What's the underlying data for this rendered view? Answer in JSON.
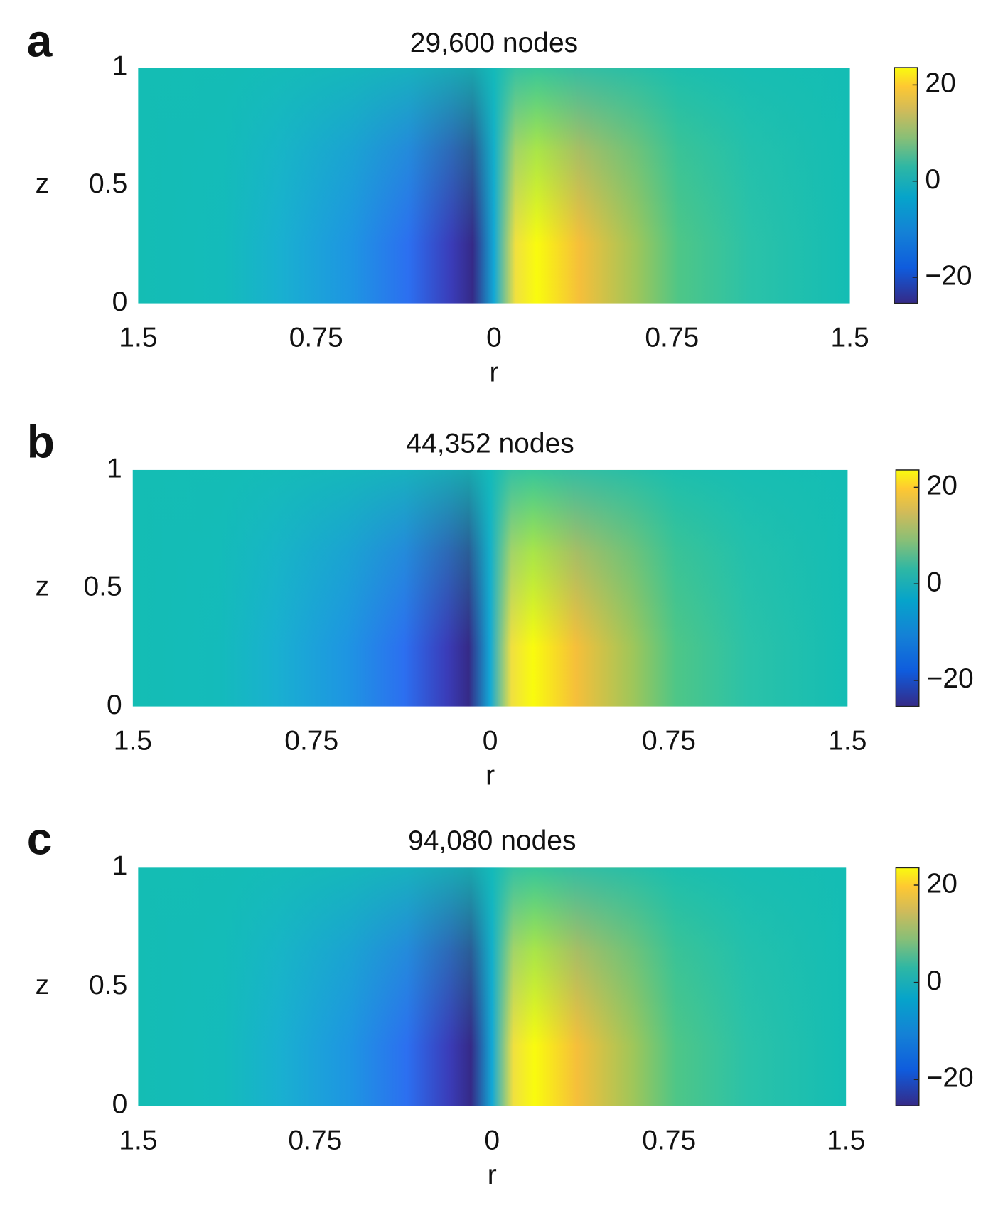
{
  "chart_data": [
    {
      "type": "contour",
      "panel": "a",
      "title": "29,600 nodes",
      "xlabel": "r",
      "ylabel": "z",
      "xlim": [
        -1.5,
        1.5
      ],
      "xticks": [
        {
          "value": -1.5,
          "label": "1.5"
        },
        {
          "value": -0.75,
          "label": "0.75"
        },
        0,
        0.75,
        1.5
      ],
      "ylim": [
        0,
        1
      ],
      "yticks": [
        0,
        0.5,
        1
      ],
      "clim": [
        -25.4,
        23.6
      ],
      "cticks": [
        {
          "value": -20,
          "label": "−20"
        },
        0,
        20
      ],
      "colormap": "parula"
    },
    {
      "type": "contour",
      "panel": "b",
      "title": "44,352 nodes",
      "xlabel": "r",
      "ylabel": "z",
      "xlim": [
        -1.5,
        1.5
      ],
      "xticks": [
        {
          "value": -1.5,
          "label": "1.5"
        },
        {
          "value": -0.75,
          "label": "0.75"
        },
        0,
        0.75,
        1.5
      ],
      "ylim": [
        0,
        1
      ],
      "yticks": [
        0,
        0.5,
        1
      ],
      "clim": [
        -25.4,
        23.6
      ],
      "cticks": [
        {
          "value": -20,
          "label": "−20"
        },
        0,
        20
      ],
      "colormap": "parula"
    },
    {
      "type": "contour",
      "panel": "c",
      "title": "94,080 nodes",
      "xlabel": "r",
      "ylabel": "z",
      "xlim": [
        -1.5,
        1.5
      ],
      "xticks": [
        {
          "value": -1.5,
          "label": "1.5"
        },
        {
          "value": -0.75,
          "label": "0.75"
        },
        0,
        0.75,
        1.5
      ],
      "ylim": [
        0,
        1
      ],
      "yticks": [
        0,
        0.5,
        1
      ],
      "clim": [
        -25.4,
        23.6
      ],
      "cticks": [
        {
          "value": -20,
          "label": "−20"
        },
        0,
        20
      ],
      "colormap": "parula"
    }
  ]
}
